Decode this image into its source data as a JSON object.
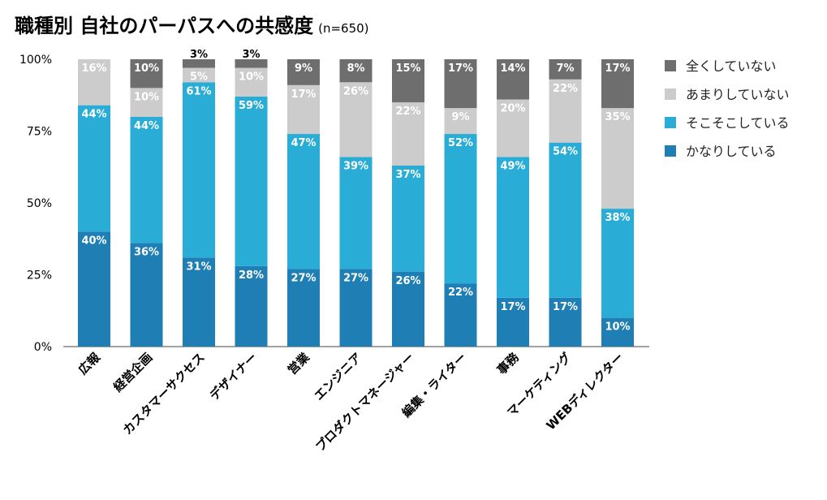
{
  "chart_data": {
    "type": "bar",
    "stacked": true,
    "title": "職種別 自社のパーパスへの共感度",
    "subtitle": "(n=650)",
    "categories": [
      "広報",
      "経営企画",
      "カスタマーサクセス",
      "デザイナー",
      "営業",
      "エンジニア",
      "プロダクトマネージャー",
      "編集・ライター",
      "事務",
      "マーケティング",
      "WEBディレクター"
    ],
    "series": [
      {
        "name": "かなりしている",
        "color": "#1f7fb4",
        "values": [
          40,
          36,
          31,
          28,
          27,
          27,
          26,
          22,
          17,
          17,
          10
        ]
      },
      {
        "name": "そこそこしている",
        "color": "#29add6",
        "values": [
          44,
          44,
          61,
          59,
          47,
          39,
          37,
          52,
          49,
          54,
          38
        ]
      },
      {
        "name": "あまりしていない",
        "color": "#cccccc",
        "values": [
          16,
          10,
          5,
          10,
          17,
          26,
          22,
          9,
          20,
          22,
          35
        ]
      },
      {
        "name": "全くしていない",
        "color": "#6e6e6e",
        "values": [
          0,
          10,
          3,
          3,
          9,
          8,
          15,
          17,
          14,
          7,
          17
        ]
      }
    ],
    "ylim": [
      0,
      100
    ],
    "yticks": [
      "0%",
      "25%",
      "50%",
      "75%",
      "100%"
    ],
    "legend_position": "right",
    "grid": false
  }
}
